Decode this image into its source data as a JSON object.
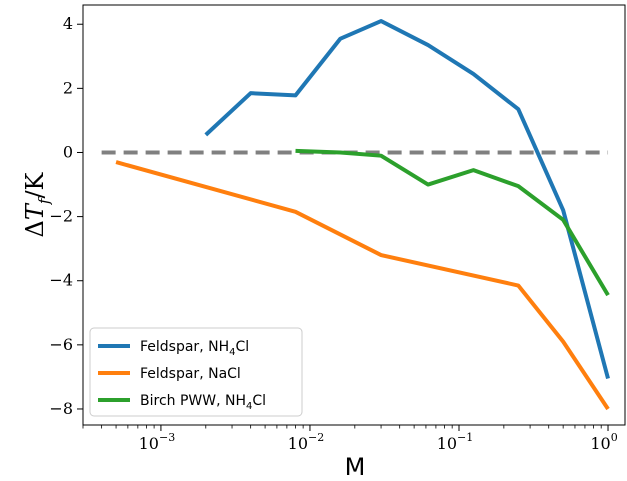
{
  "chart_data": {
    "type": "line",
    "title": "",
    "xlabel": "M",
    "ylabel": "ΔT_f/K",
    "xscale": "log",
    "xlim": [
      0.0003,
      1.3
    ],
    "ylim": [
      -8.5,
      4.6
    ],
    "xticks": [
      {
        "value": 0.001,
        "base": "10",
        "exp": "−3"
      },
      {
        "value": 0.01,
        "base": "10",
        "exp": "−2"
      },
      {
        "value": 0.1,
        "base": "10",
        "exp": "−1"
      },
      {
        "value": 1,
        "base": "10",
        "exp": "0"
      }
    ],
    "yticks": [
      {
        "value": 4,
        "label": "4"
      },
      {
        "value": 2,
        "label": "2"
      },
      {
        "value": 0,
        "label": "0"
      },
      {
        "value": -2,
        "label": "−2"
      },
      {
        "value": -4,
        "label": "−4"
      },
      {
        "value": -6,
        "label": "−6"
      },
      {
        "value": -8,
        "label": "−8"
      }
    ],
    "grid": false,
    "legend_position": "lower-left",
    "reference_line": {
      "y": 0,
      "x_range": [
        0.0004,
        1.0
      ],
      "color": "#808080",
      "style": "dashed"
    },
    "series": [
      {
        "name": "Feldspar, NH",
        "name_sub": "4",
        "name_suffix": "Cl",
        "color": "#1f77b4",
        "points": [
          [
            0.002,
            0.55
          ],
          [
            0.004,
            1.85
          ],
          [
            0.008,
            1.78
          ],
          [
            0.016,
            3.55
          ],
          [
            0.03,
            4.1
          ],
          [
            0.062,
            3.35
          ],
          [
            0.125,
            2.45
          ],
          [
            0.25,
            1.35
          ],
          [
            0.5,
            -1.8
          ],
          [
            1.0,
            -7.05
          ]
        ]
      },
      {
        "name": "Feldspar, NaCl",
        "color": "#ff7f0e",
        "points": [
          [
            0.0005,
            -0.3
          ],
          [
            0.008,
            -1.85
          ],
          [
            0.03,
            -3.2
          ],
          [
            0.25,
            -4.15
          ],
          [
            0.5,
            -5.9
          ],
          [
            1.0,
            -8.0
          ]
        ]
      },
      {
        "name": "Birch PWW, NH",
        "name_sub": "4",
        "name_suffix": "Cl",
        "color": "#2ca02c",
        "points": [
          [
            0.008,
            0.05
          ],
          [
            0.016,
            0.0
          ],
          [
            0.03,
            -0.1
          ],
          [
            0.062,
            -1.0
          ],
          [
            0.125,
            -0.55
          ],
          [
            0.25,
            -1.05
          ],
          [
            0.5,
            -2.1
          ],
          [
            1.0,
            -4.45
          ]
        ]
      }
    ]
  }
}
